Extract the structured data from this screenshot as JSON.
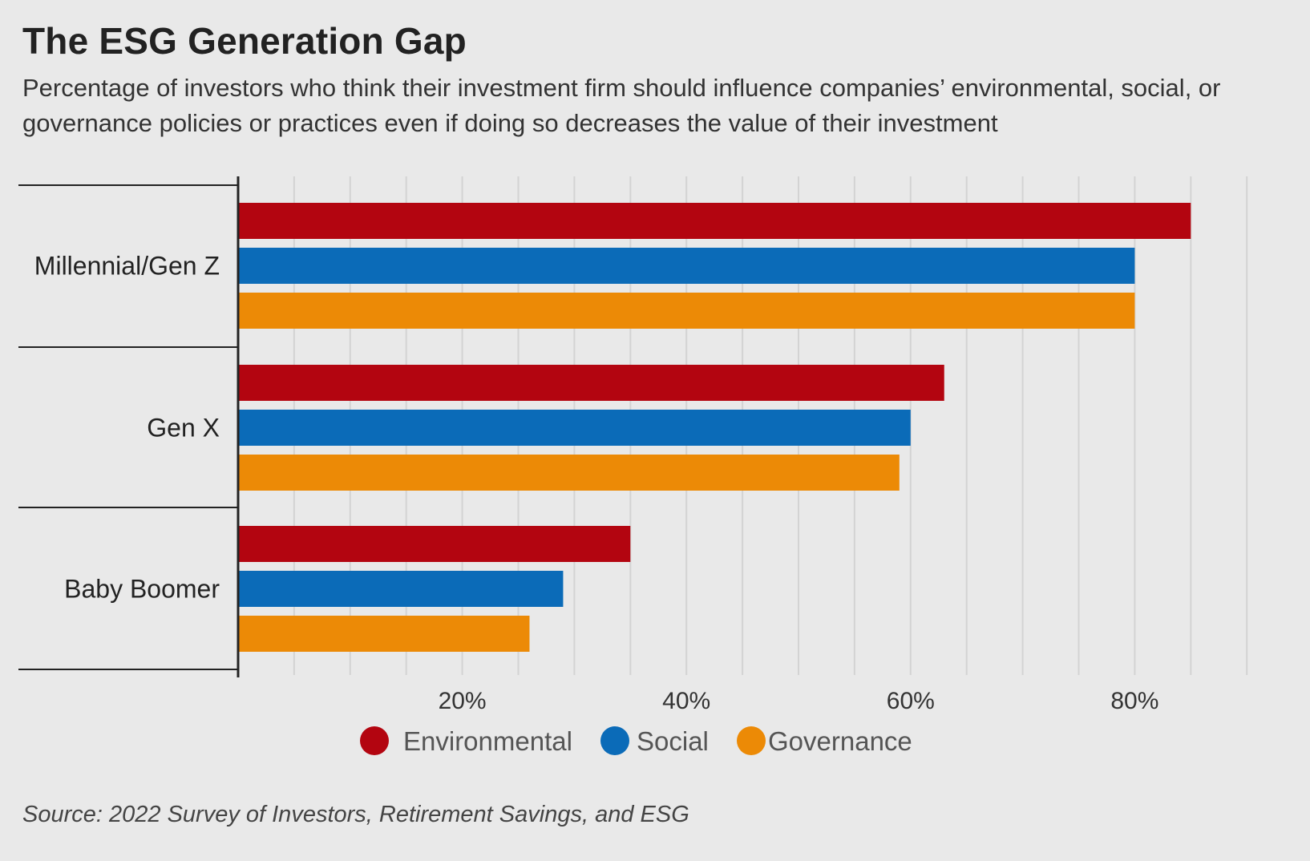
{
  "header": {
    "title": "The ESG Generation Gap",
    "subtitle": "Percentage of investors who think their investment firm should influence companies’ environmental, social, or governance policies or practices even if doing so decreases the value of their investment"
  },
  "footer": {
    "source": "Source: 2022 Survey of Investors, Retirement Savings, and ESG"
  },
  "chart_data": {
    "type": "bar",
    "orientation": "horizontal",
    "title": "The ESG Generation Gap",
    "xlabel": "",
    "ylabel": "",
    "xlim": [
      0,
      90
    ],
    "xticks": [
      20,
      40,
      60,
      80
    ],
    "xtick_labels": [
      "20%",
      "40%",
      "60%",
      "80%"
    ],
    "categories": [
      "Millennial/Gen Z",
      "Gen X",
      "Baby Boomer"
    ],
    "series": [
      {
        "name": "Environmental",
        "color": "#b30510",
        "values": [
          85,
          63,
          35
        ]
      },
      {
        "name": "Social",
        "color": "#0b6bb8",
        "values": [
          80,
          60,
          29
        ]
      },
      {
        "name": "Governance",
        "color": "#ec8a06",
        "values": [
          80,
          59,
          26
        ]
      }
    ],
    "grid": true,
    "legend": "bottom-center"
  }
}
